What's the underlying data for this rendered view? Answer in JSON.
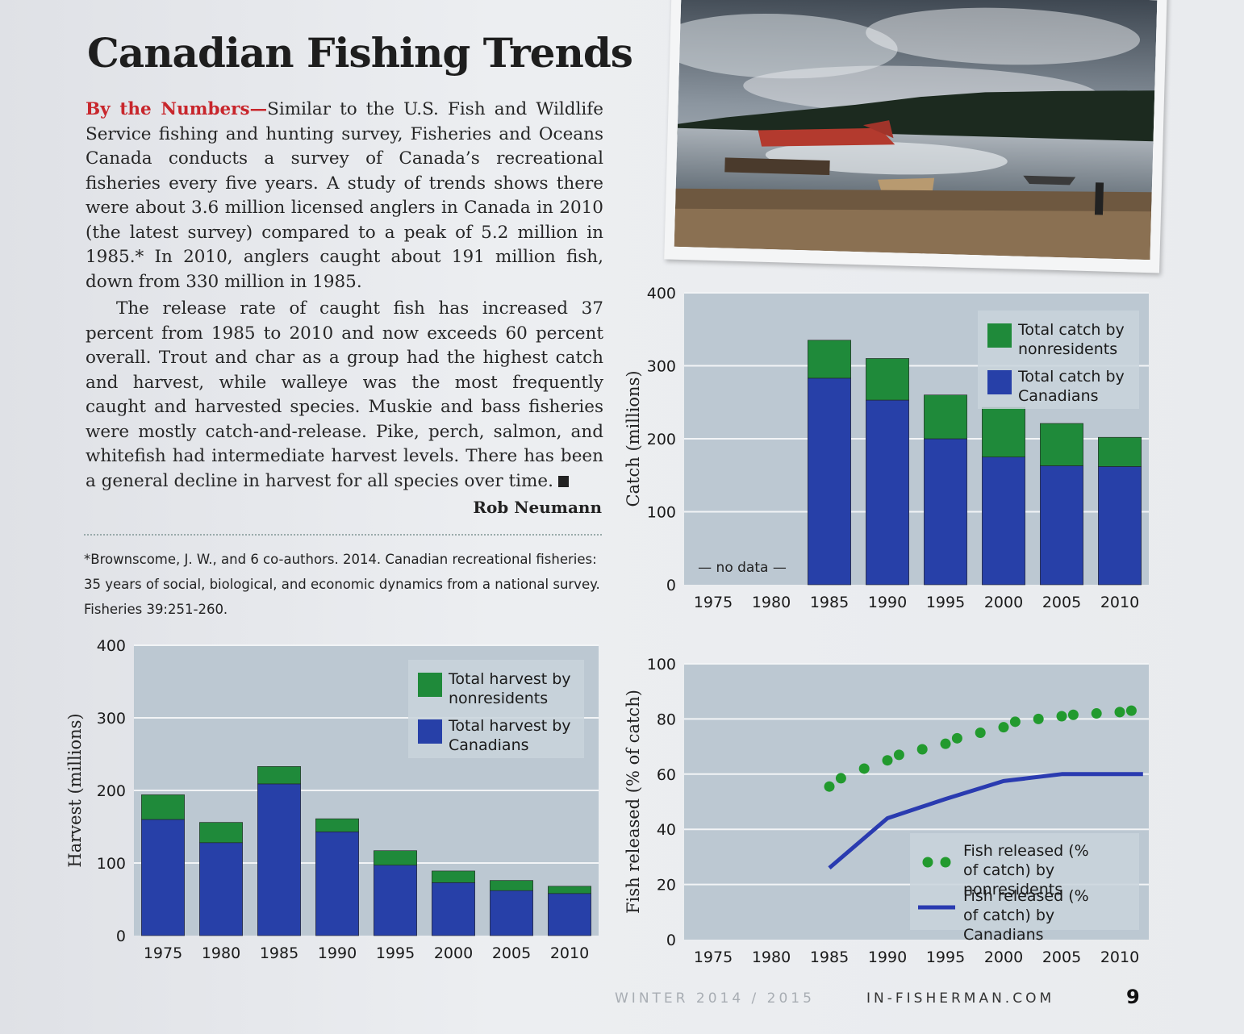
{
  "article": {
    "title": "Canadian Fishing Trends",
    "lead": "By the Numbers—",
    "para1": "Similar to the U.S. Fish and Wildlife Service fishing and hunting survey, Fisheries and Oceans Canada conducts a survey of Canada’s recreational fisheries every five years. A study of trends shows there were about 3.6 million licensed anglers in Canada in 2010 (the latest survey) compared to a peak of 5.2 million in 1985.* In 2010, anglers caught about 191 million fish, down from 330 million in 1985.",
    "para2": "The release rate of caught fish has increased 37 percent from 1985 to 2010 and now exceeds 60 percent overall. Trout and char as a group had the highest catch and harvest, while walleye was the most frequently caught and harvested species. Muskie and bass fisheries were mostly catch-and-release. Pike, perch, salmon, and whitefish had intermediate harvest levels. There has been a general decline in harvest for all species over time.",
    "byline": "Rob Neumann",
    "footnote": "*Brownscome, J. W., and 6 co-authors. 2014. Canadian recreational fisheries: 35 years of social, biological, and economic dynamics from a national survey. Fisheries 39:251-260."
  },
  "footer": {
    "issue": "WINTER 2014 / 2015",
    "site": "IN-FISHERMAN.COM",
    "page": "9"
  },
  "colors": {
    "canadians": "#2740a8",
    "nonresidents": "#1f8a3a",
    "dots": "#229a2e",
    "line": "#2a3bb0",
    "lead_red": "#c8262c"
  },
  "chart_data": [
    {
      "id": "catch",
      "type": "bar",
      "stacked": true,
      "categories": [
        "1975",
        "1980",
        "1985",
        "1990",
        "1995",
        "2000",
        "2005",
        "2010"
      ],
      "series": [
        {
          "name": "Total catch by Canadians",
          "values": [
            null,
            null,
            283,
            253,
            200,
            175,
            163,
            162
          ]
        },
        {
          "name": "Total catch by nonresidents",
          "values": [
            null,
            null,
            52,
            57,
            60,
            68,
            58,
            40
          ]
        }
      ],
      "ylabel": "Catch (millions)",
      "ylim": [
        0,
        400
      ],
      "yticks": [
        0,
        100,
        200,
        300,
        400
      ],
      "annotation": "— no data —",
      "legend": "top-right",
      "grid": true
    },
    {
      "id": "harvest",
      "type": "bar",
      "stacked": true,
      "categories": [
        "1975",
        "1980",
        "1985",
        "1990",
        "1995",
        "2000",
        "2005",
        "2010"
      ],
      "series": [
        {
          "name": "Total harvest by Canadians",
          "values": [
            160,
            128,
            209,
            143,
            97,
            73,
            62,
            58
          ]
        },
        {
          "name": "Total harvest by nonresidents",
          "values": [
            34,
            28,
            24,
            18,
            20,
            16,
            14,
            10
          ]
        }
      ],
      "ylabel": "Harvest (millions)",
      "ylim": [
        0,
        400
      ],
      "yticks": [
        0,
        100,
        200,
        300,
        400
      ],
      "legend": "top-right",
      "grid": true
    },
    {
      "id": "released",
      "type": "line",
      "categories": [
        "1975",
        "1980",
        "1985",
        "1990",
        "1995",
        "2000",
        "2005",
        "2010"
      ],
      "series": [
        {
          "name": "Fish released (% of catch) by nonresidents",
          "style": "dots",
          "x": [
            1985,
            1986,
            1988,
            1990,
            1991,
            1993,
            1995,
            1996,
            1998,
            2000,
            2001,
            2003,
            2005,
            2006,
            2008,
            2010,
            2011
          ],
          "y": [
            55.5,
            58.5,
            62,
            65,
            67,
            69,
            71,
            73,
            75,
            77,
            79,
            80,
            81,
            81.5,
            82,
            82.5,
            83
          ]
        },
        {
          "name": "Fish released (% of catch) by Canadians",
          "style": "line",
          "x": [
            1985,
            1990,
            1995,
            2000,
            2005,
            2010,
            2012
          ],
          "y": [
            26,
            44,
            51,
            57.5,
            60,
            60,
            60
          ]
        }
      ],
      "ylabel": "Fish released (% of catch)",
      "ylim": [
        0,
        100
      ],
      "yticks": [
        0,
        20,
        40,
        60,
        80,
        100
      ],
      "legend": "bottom-right",
      "grid": true
    }
  ]
}
